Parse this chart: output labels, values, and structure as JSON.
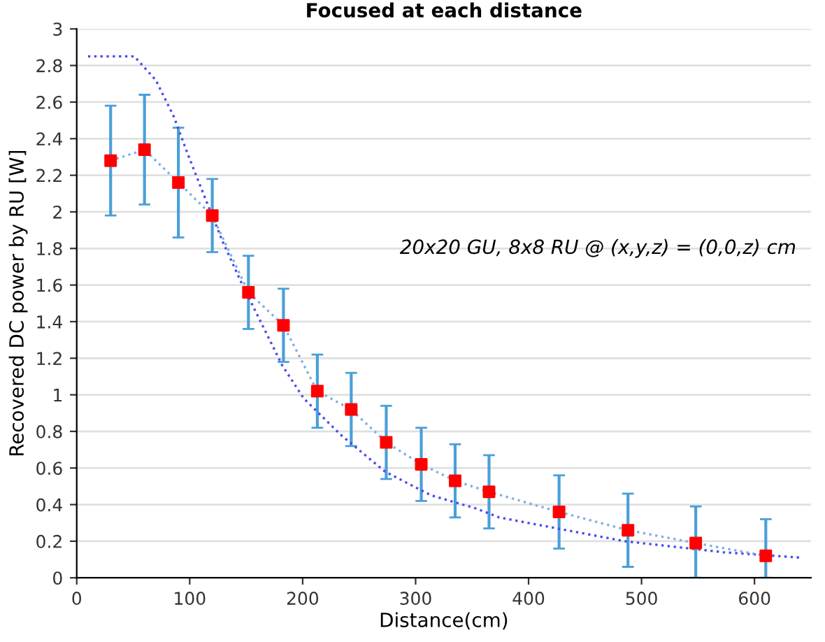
{
  "chart_data": {
    "type": "scatter",
    "title": "Focused at each distance",
    "xlabel": "Distance(cm)",
    "ylabel": "Recovered DC power by RU [W]",
    "xlim": [
      0,
      650
    ],
    "xticks": [
      0,
      100,
      200,
      300,
      400,
      500,
      600
    ],
    "ylim": [
      0,
      3
    ],
    "yticks": [
      0,
      0.2,
      0.4,
      0.6,
      0.8,
      1,
      1.2,
      1.4,
      1.6,
      1.8,
      2,
      2.2,
      2.4,
      2.6,
      2.8,
      3
    ],
    "grid": "y",
    "legend": false,
    "annotations": [
      "20x20 GU, 8x8 RU @ (x,y,z) = (0,0,z) cm"
    ],
    "series": [
      {
        "type": "line",
        "color": "#4b4bf0",
        "line_style": "dotted",
        "marker": "none",
        "x": [
          10,
          51,
          70,
          86,
          98,
          114,
          129,
          146,
          162,
          182,
          201,
          234,
          273,
          314,
          353,
          374,
          485,
          572,
          641
        ],
        "values": [
          2.85,
          2.85,
          2.72,
          2.52,
          2.32,
          2.07,
          1.84,
          1.61,
          1.41,
          1.16,
          0.98,
          0.78,
          0.58,
          0.45,
          0.38,
          0.33,
          0.2,
          0.14,
          0.11
        ]
      },
      {
        "type": "line",
        "color": "#7fb0e0",
        "line_style": "dotted",
        "marker": "none",
        "x": [
          30,
          60,
          90,
          120,
          152,
          183,
          213,
          243,
          274,
          305,
          335,
          365,
          427,
          488,
          548,
          610
        ],
        "values": [
          2.28,
          2.34,
          2.16,
          1.98,
          1.56,
          1.38,
          1.02,
          0.92,
          0.74,
          0.62,
          0.53,
          0.47,
          0.36,
          0.26,
          0.19,
          0.12
        ]
      },
      {
        "color": "#ff0000",
        "marker": "square",
        "line_style": "dotted",
        "x": [
          30,
          60,
          90,
          120,
          152,
          183,
          213,
          243,
          274,
          305,
          335,
          365,
          427,
          488,
          548,
          610
        ],
        "values": [
          2.28,
          2.34,
          2.16,
          1.98,
          1.56,
          1.38,
          1.02,
          0.92,
          0.74,
          0.62,
          0.53,
          0.47,
          0.36,
          0.26,
          0.19,
          0.12
        ],
        "errors": [
          0.3,
          0.3,
          0.3,
          0.2,
          0.2,
          0.2,
          0.2,
          0.2,
          0.2,
          0.2,
          0.2,
          0.2,
          0.2,
          0.2,
          [
            0,
            0.39
          ],
          [
            0,
            0.32
          ]
        ]
      }
    ]
  }
}
